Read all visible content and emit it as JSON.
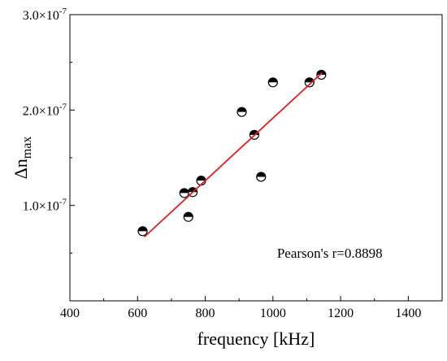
{
  "chart_data": {
    "type": "scatter",
    "title": "",
    "xlabel": "frequency [kHz]",
    "ylabel": {
      "base": "Δn",
      "subscript": "max"
    },
    "xlim": [
      400,
      1500
    ],
    "ylim": [
      0,
      3e-07
    ],
    "x_ticks": [
      400,
      600,
      800,
      1000,
      1200,
      1400
    ],
    "x_tick_labels": [
      "400",
      "600",
      "800",
      "1000",
      "1200",
      "1400"
    ],
    "y_ticks": [
      1e-07,
      2e-07,
      3e-07
    ],
    "y_tick_labels": [
      {
        "mantissa": "1.0",
        "times": "×",
        "base": "10",
        "exponent": "-7"
      },
      {
        "mantissa": "2.0",
        "times": "×",
        "base": "10",
        "exponent": "-7"
      },
      {
        "mantissa": "3.0",
        "times": "×",
        "base": "10",
        "exponent": "-7"
      }
    ],
    "grid": false,
    "series": [
      {
        "marker": "half-filled-circle",
        "color": "#000000",
        "x": [
          615,
          738,
          750,
          763,
          788,
          908,
          945,
          965,
          1000,
          1108,
          1143
        ],
        "y": [
          7.3e-08,
          1.13e-07,
          8.8e-08,
          1.14e-07,
          1.26e-07,
          1.98e-07,
          1.74e-07,
          1.3e-07,
          2.29e-07,
          2.29e-07,
          2.37e-07
        ]
      }
    ],
    "fit_line": {
      "color": "#e81c1c",
      "x": [
        620,
        1145
      ],
      "y": [
        6.7e-08,
        2.39e-07
      ]
    },
    "annotations": [
      {
        "text": "Pearson's r=0.8898",
        "x": 1300,
        "y": 3.5e-08
      }
    ]
  }
}
